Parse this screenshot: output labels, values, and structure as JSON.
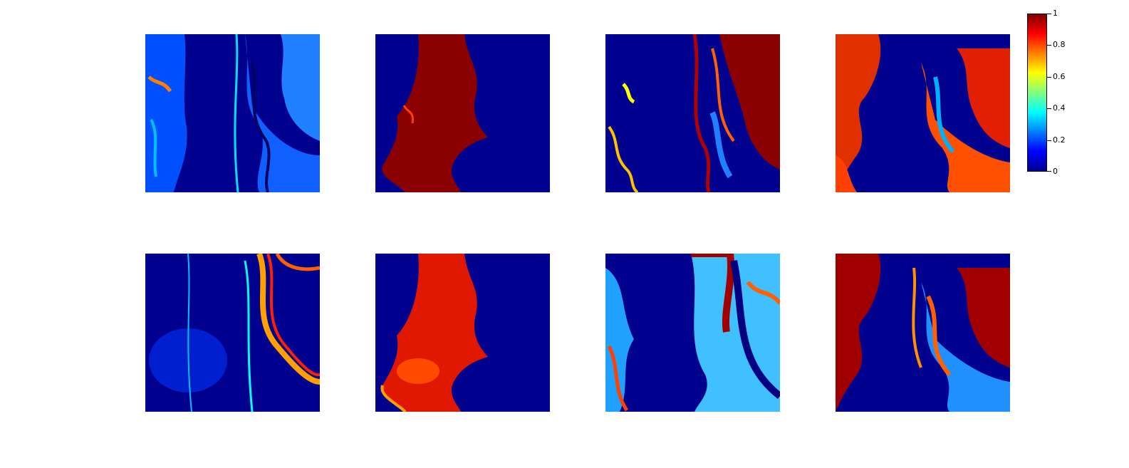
{
  "chart_data": {
    "type": "heatmap",
    "layout": "2x4 grid of abundance maps",
    "colormap": "jet",
    "colors": {
      "low": "#00008f",
      "mid": "#80ff80",
      "high": "#800000"
    },
    "colorbar": {
      "range": [
        0,
        1
      ],
      "ticks": [
        0,
        0.2,
        0.4,
        0.6,
        0.8,
        1
      ],
      "tick_labels": [
        "0",
        "0.2",
        "0.4",
        "0.6",
        "0.8",
        "1"
      ]
    },
    "title": "",
    "xlabel": "",
    "ylabel": "",
    "panels": [
      {
        "row": 1,
        "col": 1,
        "pattern": "diffuse low values (~0.2) on right banks, hot spots on left edge"
      },
      {
        "row": 1,
        "col": 2,
        "pattern": "central vertical band near 1, background 0"
      },
      {
        "row": 1,
        "col": 3,
        "pattern": "thin high-value curves and upper-right block near 1"
      },
      {
        "row": 1,
        "col": 4,
        "pattern": "high values (~0.8) on both side regions, center 0"
      },
      {
        "row": 2,
        "col": 1,
        "pattern": "mostly 0 with bright curving lines on right"
      },
      {
        "row": 2,
        "col": 2,
        "pattern": "central vertical band ~0.8-0.9"
      },
      {
        "row": 2,
        "col": 3,
        "pattern": "mixed mid values (~0.4-0.9) on banks and channels"
      },
      {
        "row": 2,
        "col": 4,
        "pattern": "high values on side regions, mid values scattered"
      }
    ]
  }
}
